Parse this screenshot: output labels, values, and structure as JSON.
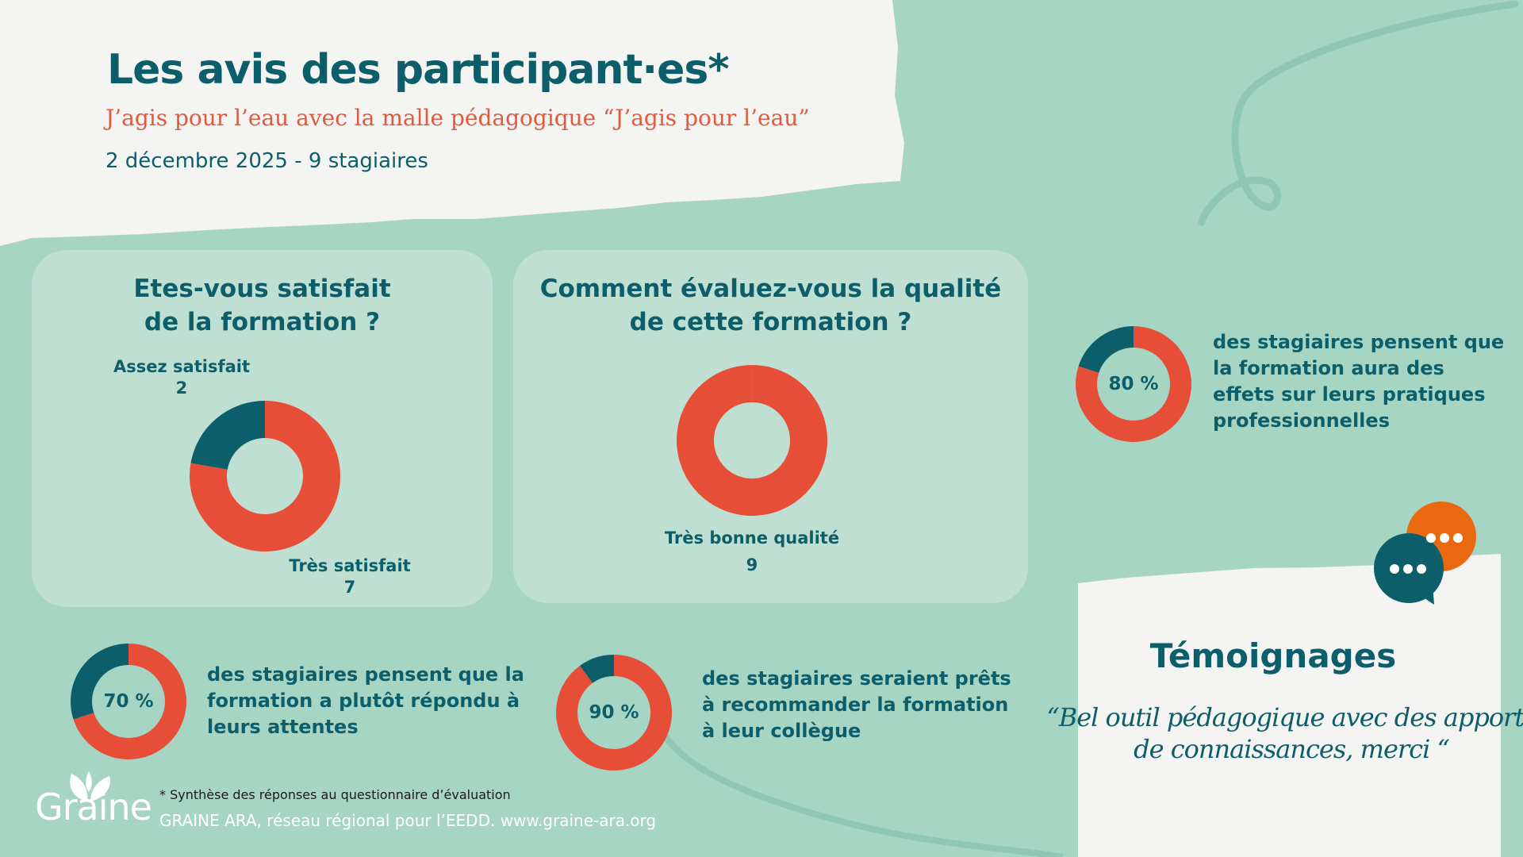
{
  "header": {
    "title": "Les avis des participant·es*",
    "subtitle": "J’agis pour l’eau avec la malle pédagogique “J’agis pour l’eau”",
    "date": "2 décembre 2025 - 9 stagiaires"
  },
  "colors": {
    "background": "#a7d5c3",
    "card": "#c0dfd3",
    "teal": "#0c5e6a",
    "red": "#e64e37",
    "orange": "#e8690f"
  },
  "chart_data": [
    {
      "type": "pie",
      "title": "Etes-vous satisfait de la formation ?",
      "title_lines": [
        "Etes-vous satisfait",
        "de la formation ?"
      ],
      "slices": [
        {
          "label": "Très satisfait",
          "value": 7
        },
        {
          "label": "Assez satisfait",
          "value": 2
        }
      ]
    },
    {
      "type": "pie",
      "title": "Comment évaluez-vous la qualité de cette formation ?",
      "title_lines": [
        "Comment évaluez-vous la qualité",
        "de cette formation ?"
      ],
      "slices": [
        {
          "label": "Très bonne qualité",
          "value": 9
        }
      ]
    }
  ],
  "stats": [
    {
      "percent": 80,
      "label": "80 %",
      "lines": [
        "des stagiaires pensent que",
        "la formation aura des",
        "effets sur leurs pratiques",
        "professionnelles"
      ]
    },
    {
      "percent": 70,
      "label": "70 %",
      "lines": [
        "des stagiaires pensent que la",
        "formation a plutôt répondu à",
        "leurs attentes"
      ]
    },
    {
      "percent": 90,
      "label": "90 %",
      "lines": [
        "des stagiaires seraient prêts",
        "à recommander la formation",
        "à leur collègue"
      ]
    }
  ],
  "testimonials": {
    "title": "Témoignages",
    "quote_lines": [
      "“Bel outil pédagogique avec des apports",
      "de connaissances, merci “"
    ]
  },
  "footer": {
    "note": "* Synthèse des réponses au questionnaire d’évaluation",
    "credit": "GRAINE ARA, réseau régional pour l’EEDD. www.graine-ara.org",
    "logo": "Graine"
  }
}
